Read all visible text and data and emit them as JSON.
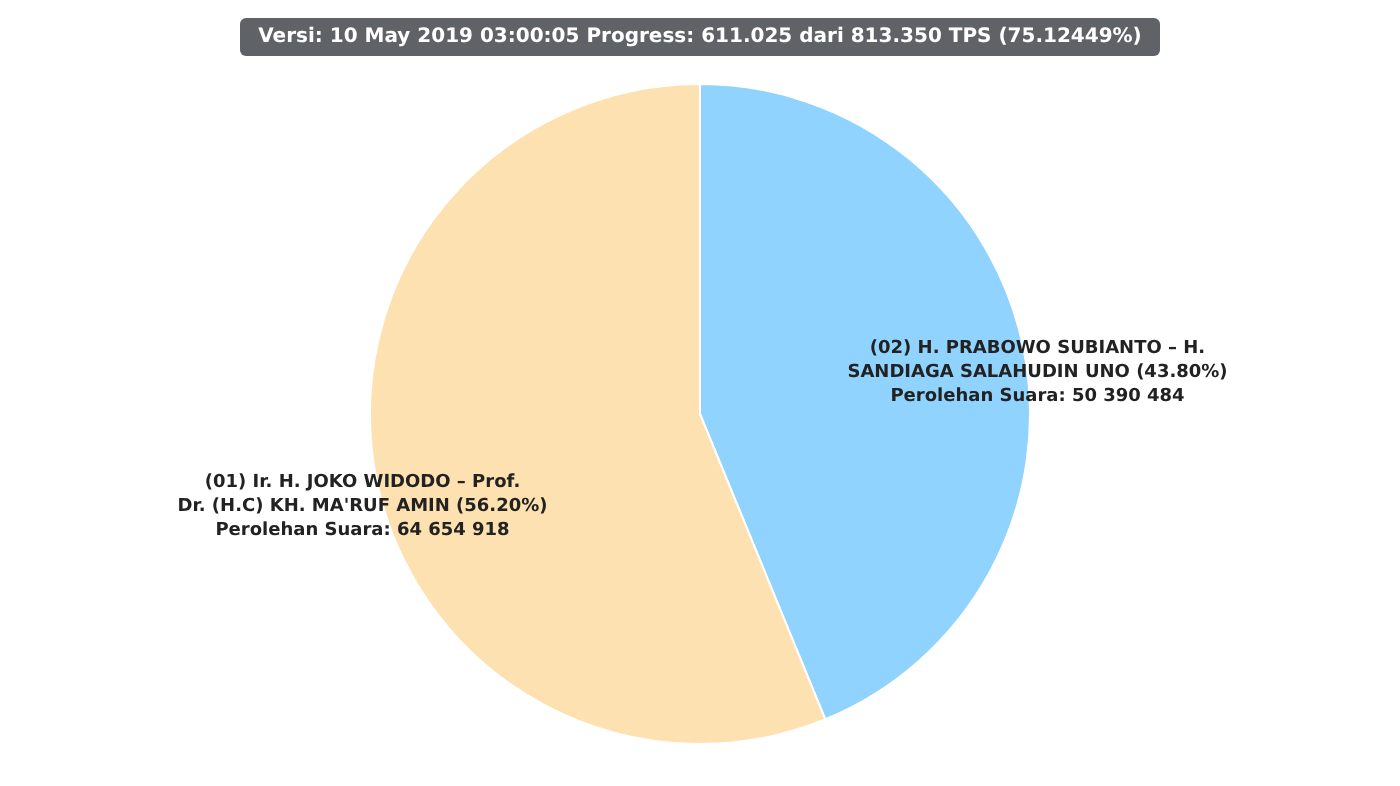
{
  "chart_data": {
    "type": "pie",
    "title": "Versi: 10 May 2019 03:00:05 Progress: 611.025 dari 813.350 TPS (75.12449%)",
    "categories": [
      "(02) H. PRABOWO SUBIANTO – H. SANDIAGA SALAHUDIN UNO (43.80%)",
      "(01) Ir. H. JOKO WIDODO – Prof. Dr. (H.C) KH. MA'RUF AMIN (56.20%)"
    ],
    "values": [
      50390484,
      64654918
    ],
    "value_labels": [
      "Perolehan Suara: 50 390 484",
      "Perolehan Suara: 64 654 918"
    ],
    "colors": [
      "#8fd3fe",
      "#fde1b0"
    ]
  }
}
